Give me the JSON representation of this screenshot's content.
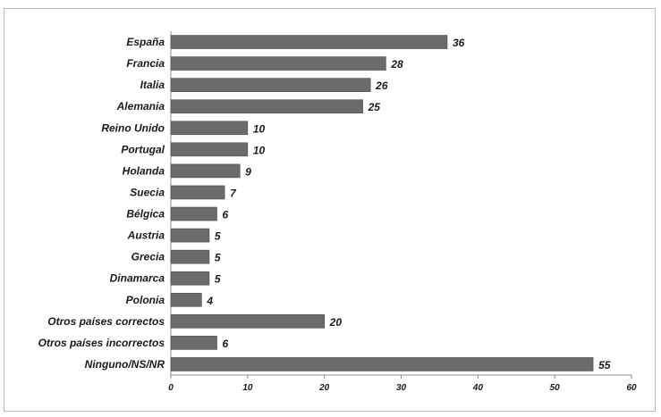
{
  "chart_data": {
    "type": "bar",
    "orientation": "horizontal",
    "title": "",
    "xlabel": "",
    "ylabel": "",
    "categories": [
      "España",
      "Francia",
      "Italia",
      "Alemania",
      "Reino Unido",
      "Portugal",
      "Holanda",
      "Suecia",
      "Bélgica",
      "Austria",
      "Grecia",
      "Dinamarca",
      "Polonia",
      "Otros países correctos",
      "Otros países incorrectos",
      "Ninguno/NS/NR"
    ],
    "values": [
      36,
      28,
      26,
      25,
      10,
      10,
      9,
      7,
      6,
      5,
      5,
      5,
      4,
      20,
      6,
      55
    ],
    "xlim": [
      0,
      60
    ],
    "xticks": [
      0,
      10,
      20,
      30,
      40,
      50,
      60
    ],
    "grid": false,
    "legend": "none",
    "bar_color": "#6b6b6b"
  }
}
